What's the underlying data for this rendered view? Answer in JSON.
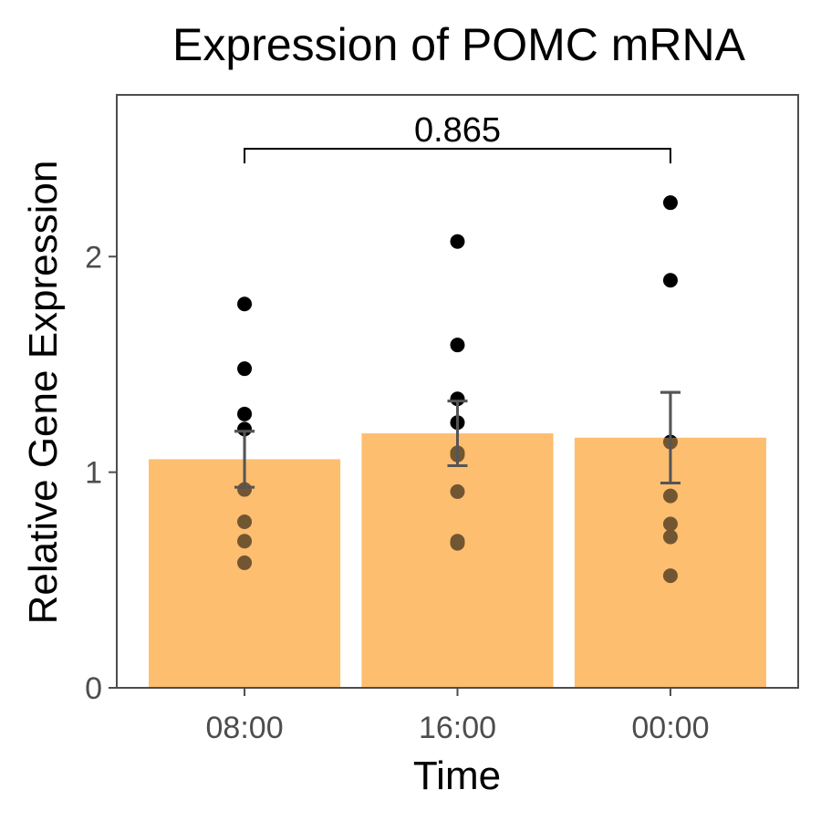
{
  "chart_data": {
    "type": "bar",
    "title": "Expression of POMC mRNA",
    "xlabel": "Time",
    "ylabel": "Relative Gene Expression",
    "categories": [
      "08:00",
      "16:00",
      "00:00"
    ],
    "values": [
      1.06,
      1.18,
      1.16
    ],
    "error_low": [
      0.93,
      1.03,
      0.95
    ],
    "error_high": [
      1.19,
      1.33,
      1.37
    ],
    "points": [
      [
        1.78,
        1.48,
        1.27,
        1.2,
        0.92,
        0.77,
        0.68,
        0.58
      ],
      [
        2.07,
        1.59,
        1.34,
        1.23,
        1.09,
        1.08,
        0.91,
        0.68,
        0.67
      ],
      [
        2.25,
        1.89,
        1.14,
        0.89,
        0.76,
        0.7,
        0.52
      ]
    ],
    "ylim": [
      0,
      2.75
    ],
    "yticks": [
      0,
      1,
      2
    ],
    "ytick_labels": [
      "0",
      "1",
      "2"
    ],
    "grid": false,
    "annotation": {
      "text": "0.865",
      "from_category": "08:00",
      "to_category": "00:00",
      "y": 2.5
    },
    "bar_color": "#fdbe6f",
    "point_color": "#000000",
    "error_color": "#555555"
  }
}
